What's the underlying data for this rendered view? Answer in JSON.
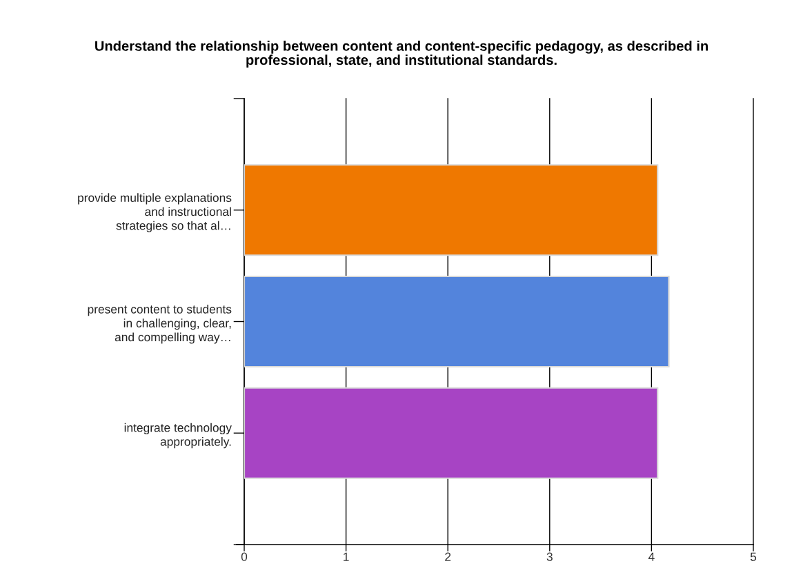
{
  "chart_data": {
    "type": "bar",
    "orientation": "horizontal",
    "title": "Understand the relationship between content and content-specific pedagogy, as described in\nprofessional, state, and institutional standards.",
    "categories": [
      "provide multiple explanations\nand instructional\nstrategies so that al…",
      "present content to students\nin challenging, clear,\nand compelling way…",
      "integrate technology\nappropriately."
    ],
    "values": [
      4.06,
      4.17,
      4.06
    ],
    "colors": [
      "#ef7800",
      "#5384dc",
      "#a744c4"
    ],
    "xlim": [
      0,
      5
    ],
    "xticks": [
      0,
      1,
      2,
      3,
      4,
      5
    ],
    "grid": "x"
  }
}
